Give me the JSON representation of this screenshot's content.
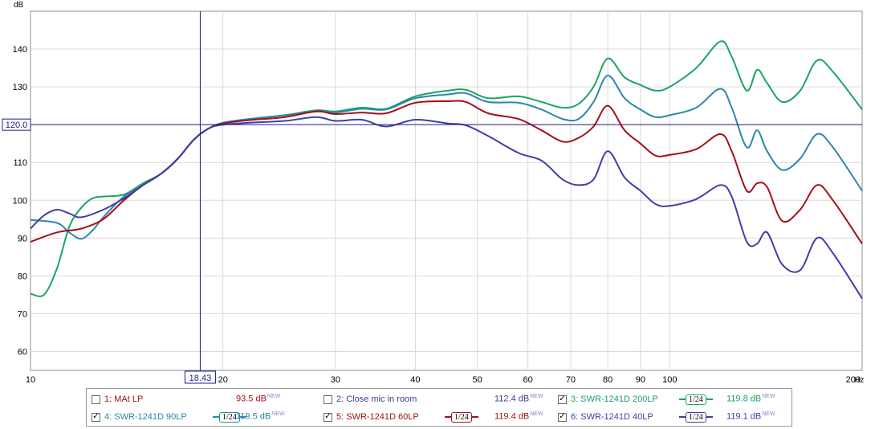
{
  "chart_data": {
    "type": "line",
    "ylabel": "dB",
    "xunit": "Hz",
    "xscale": "log",
    "xlim": [
      10,
      200
    ],
    "ylim": [
      55,
      150
    ],
    "yticks": [
      60,
      70,
      80,
      90,
      100,
      110,
      120,
      130,
      140
    ],
    "xticks": [
      10,
      20,
      30,
      40,
      50,
      60,
      70,
      80,
      90,
      100,
      200
    ],
    "grid": true,
    "cursor": {
      "x_label": "18.43",
      "y_label": "120.0",
      "x": 18.43,
      "y": 120.0
    },
    "series": [
      {
        "name": "SWR-1241D 200LP",
        "color": "#1aa564",
        "x": [
          10,
          10.5,
          11,
          11.5,
          12,
          12.5,
          13,
          14,
          15,
          16,
          17,
          18,
          19,
          20,
          22,
          25,
          28,
          30,
          33,
          36,
          40,
          45,
          48,
          52,
          58,
          63,
          68,
          72,
          76,
          80,
          85,
          90,
          95,
          100,
          110,
          120,
          125,
          132,
          137,
          142,
          150,
          160,
          170,
          180,
          200
        ],
        "y": [
          75.3,
          75,
          82,
          93,
          98,
          100.5,
          101,
          101.5,
          104.5,
          107,
          111,
          116,
          119,
          120.5,
          121.5,
          122.5,
          123.8,
          123.5,
          124.5,
          124.2,
          127.5,
          129,
          129.2,
          127,
          127.5,
          126,
          124.5,
          125.5,
          130,
          137.5,
          132.5,
          130.5,
          129,
          130,
          135,
          142,
          138,
          129,
          134.5,
          131,
          126,
          129,
          137,
          134,
          124
        ]
      },
      {
        "name": "SWR-1241D 90LP",
        "color": "#2c87a8",
        "x": [
          10,
          11,
          11.5,
          12,
          12.5,
          13,
          14,
          15,
          16,
          17,
          18,
          19,
          20,
          22,
          25,
          28,
          30,
          33,
          36,
          40,
          45,
          48,
          52,
          58,
          63,
          68,
          72,
          76,
          80,
          85,
          90,
          95,
          100,
          110,
          120,
          125,
          132,
          137,
          142,
          150,
          160,
          170,
          180,
          200
        ],
        "y": [
          94.8,
          94,
          91.5,
          89.8,
          92,
          95.5,
          101,
          104,
          107,
          111,
          116,
          119,
          120.5,
          121.5,
          122.5,
          123.5,
          123.2,
          124.2,
          124,
          127,
          128,
          128.3,
          126,
          125.8,
          124,
          121.5,
          121.5,
          126,
          133,
          127,
          124,
          122,
          122.5,
          124.5,
          129.5,
          124.5,
          114,
          118.5,
          113,
          108,
          111,
          117.5,
          114,
          102.5
        ]
      },
      {
        "name": "SWR-1241D 60LP",
        "color": "#a5101a",
        "x": [
          10,
          11,
          12,
          13,
          14,
          15,
          16,
          17,
          18,
          19,
          20,
          22,
          25,
          28,
          30,
          33,
          36,
          40,
          45,
          48,
          52,
          58,
          63,
          68,
          72,
          76,
          80,
          85,
          90,
          95,
          100,
          110,
          120,
          125,
          132,
          137,
          142,
          150,
          160,
          170,
          180,
          200
        ],
        "y": [
          89,
          91.5,
          92.5,
          95,
          100,
          104,
          107,
          111,
          116,
          119,
          120.3,
          121.2,
          122,
          123.5,
          122.8,
          123.2,
          123,
          125.8,
          126.2,
          126,
          123,
          121.5,
          118.5,
          115.5,
          116.5,
          119.5,
          125,
          118.5,
          115,
          111.8,
          112,
          113.5,
          117.5,
          113,
          102.5,
          104.5,
          103.5,
          94.5,
          97.5,
          104,
          100,
          88.5
        ]
      },
      {
        "name": "SWR-1241D 40LP",
        "color": "#3e3fa8",
        "x": [
          10,
          10.5,
          11,
          11.5,
          12,
          13,
          14,
          15,
          16,
          17,
          18,
          19,
          20,
          22,
          25,
          28,
          30,
          33,
          36,
          40,
          45,
          48,
          52,
          58,
          63,
          68,
          72,
          76,
          80,
          85,
          90,
          95,
          100,
          110,
          120,
          125,
          132,
          137,
          142,
          150,
          160,
          170,
          180,
          200
        ],
        "y": [
          92.5,
          96,
          97.5,
          96.5,
          95.5,
          97.5,
          100.5,
          104,
          107,
          111,
          116,
          119,
          120,
          120.5,
          121,
          122,
          121,
          121.3,
          119.5,
          121.3,
          120.3,
          119.8,
          117,
          112.5,
          110.5,
          105.5,
          104,
          105.5,
          113,
          106,
          102.5,
          99,
          98.5,
          100.3,
          104,
          101,
          89,
          88.5,
          91.5,
          83,
          81.5,
          90,
          86,
          74
        ]
      }
    ]
  },
  "legend": [
    {
      "label": "1: MAt LP",
      "value": "93.5 dB",
      "badge": "NEW",
      "checked": false,
      "color": "#a5101a",
      "smoothing": ""
    },
    {
      "label": "2: Close mic in room",
      "value": "112.4 dB",
      "badge": "NEW",
      "checked": false,
      "color": "#3b3b99",
      "smoothing": ""
    },
    {
      "label": "3: SWR-1241D 200LP",
      "value": "119.8 dB",
      "badge": "NEW",
      "checked": true,
      "color": "#1aa564",
      "smoothing": "1/24"
    },
    {
      "label": "4: SWR-1241D 90LP",
      "value": "119.5 dB",
      "badge": "NEW",
      "checked": true,
      "color": "#2c87a8",
      "smoothing": "1/24"
    },
    {
      "label": "5: SWR-1241D 60LP",
      "value": "119.4 dB",
      "badge": "NEW",
      "checked": true,
      "color": "#a5101a",
      "smoothing": "1/24"
    },
    {
      "label": "6: SWR-1241D 40LP",
      "value": "119.1 dB",
      "badge": "NEW",
      "checked": true,
      "color": "#3e3fa8",
      "smoothing": "1/24"
    }
  ]
}
